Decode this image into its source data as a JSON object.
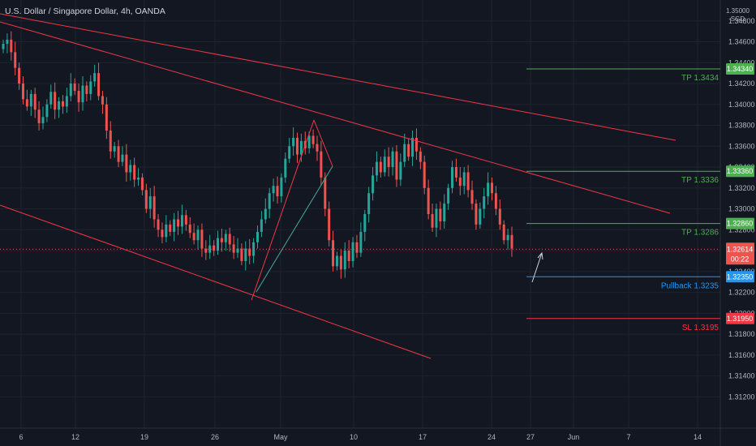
{
  "header": {
    "title": "U.S. Dollar / Singapore Dollar, 4h, OANDA",
    "currency_top": "1.35000",
    "currency": "SGD"
  },
  "colors": {
    "background": "#131722",
    "grid": "#1f2330",
    "up": "#26a69a",
    "down": "#ef5350",
    "trend": "#f23645",
    "tp": "#4caf50",
    "pullback": "#2196f3",
    "sl": "#f23645",
    "arrow": "#d1d4dc"
  },
  "chart_data": {
    "type": "candlestick",
    "symbol": "U.S. Dollar / Singapore Dollar",
    "timeframe": "4h",
    "source": "OANDA",
    "ylim": [
      1.309,
      1.35
    ],
    "y_ticks": [
      "1.34800",
      "1.34600",
      "1.34400",
      "1.34200",
      "1.34000",
      "1.33800",
      "1.33600",
      "1.33400",
      "1.33200",
      "1.33000",
      "1.32800",
      "1.32600",
      "1.32400",
      "1.32200",
      "1.32000",
      "1.31800",
      "1.31600",
      "1.31400",
      "1.31200"
    ],
    "x_ticks": [
      "6",
      "12",
      "19",
      "26",
      "May",
      "10",
      "17",
      "24",
      "27",
      "Jun",
      "7",
      "14"
    ],
    "current_price": "1.32614",
    "countdown": "00:22",
    "closes": [
      1.3458,
      1.3462,
      1.345,
      1.3435,
      1.342,
      1.3405,
      1.3398,
      1.341,
      1.3395,
      1.3382,
      1.3388,
      1.34,
      1.3412,
      1.3395,
      1.3403,
      1.3398,
      1.3408,
      1.342,
      1.3413,
      1.3402,
      1.3418,
      1.341,
      1.3422,
      1.343,
      1.3408,
      1.34,
      1.3375,
      1.3355,
      1.336,
      1.3345,
      1.3352,
      1.3335,
      1.3342,
      1.3328,
      1.333,
      1.3318,
      1.33,
      1.3312,
      1.329,
      1.328,
      1.3273,
      1.3285,
      1.3278,
      1.329,
      1.3283,
      1.3294,
      1.3285,
      1.3277,
      1.327,
      1.328,
      1.3262,
      1.3258,
      1.3265,
      1.326,
      1.3272,
      1.3268,
      1.3276,
      1.3266,
      1.3258,
      1.3262,
      1.325,
      1.3262,
      1.3255,
      1.3268,
      1.3278,
      1.329,
      1.33,
      1.3315,
      1.3322,
      1.3312,
      1.333,
      1.3348,
      1.336,
      1.3368,
      1.3352,
      1.3365,
      1.3358,
      1.337,
      1.3362,
      1.3355,
      1.333,
      1.33,
      1.327,
      1.3245,
      1.3255,
      1.3242,
      1.326,
      1.325,
      1.3268,
      1.3258,
      1.3278,
      1.3295,
      1.3315,
      1.3332,
      1.3345,
      1.3335,
      1.335,
      1.334,
      1.3355,
      1.3328,
      1.3345,
      1.3362,
      1.335,
      1.3368,
      1.3355,
      1.3345,
      1.332,
      1.3295,
      1.3282,
      1.33,
      1.3288,
      1.3305,
      1.332,
      1.334,
      1.333,
      1.3322,
      1.3335,
      1.3318,
      1.3305,
      1.3285,
      1.33,
      1.3312,
      1.3325,
      1.3315,
      1.33,
      1.3285,
      1.327,
      1.3275,
      1.3262
    ],
    "levels": [
      {
        "label": "TP 1.3434",
        "tag": "1.34340",
        "value": 1.3434,
        "kind": "tp"
      },
      {
        "label": "TP 1.3336",
        "tag": "1.33360",
        "value": 1.3336,
        "kind": "tp"
      },
      {
        "label": "TP 1.3286",
        "tag": "1.32860",
        "value": 1.3286,
        "kind": "tp"
      },
      {
        "label": "Pullback 1.3235",
        "tag": "1.32350",
        "value": 1.3235,
        "kind": "pullback"
      },
      {
        "label": "SL 1.3195",
        "tag": "1.31950",
        "value": 1.3195,
        "kind": "sl"
      }
    ]
  }
}
